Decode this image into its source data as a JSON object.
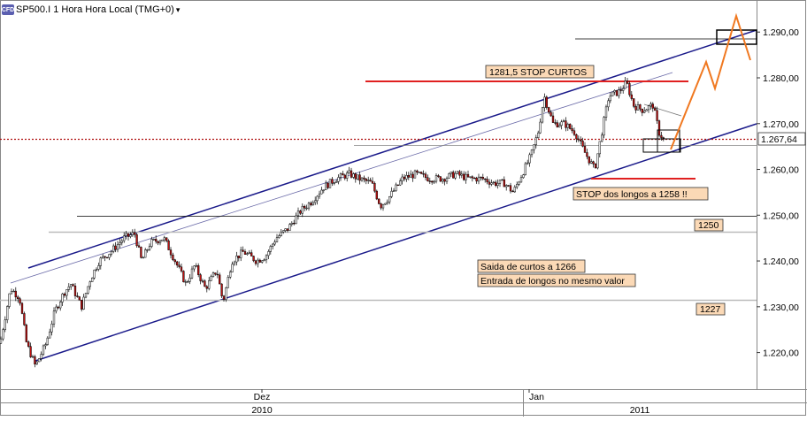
{
  "header": {
    "logo_text": "CFD",
    "title": "SP500.I 1 Hora Hora Local (TMG+0)",
    "menu_glyph": "▾"
  },
  "colors": {
    "channel": "#1a1a8a",
    "stop": "#e02020",
    "forecast": "#f07820",
    "candle_up": "#ffffff",
    "candle_down": "#c01010",
    "price_line": "#b01010",
    "label_bg": "#fbd9b6"
  },
  "chart_data": {
    "type": "candlestick",
    "ylim": [
      1212,
      1297
    ],
    "y_ticks": [
      "1.220,00",
      "1.230,00",
      "1.240,00",
      "1.250,00",
      "1.260,00",
      "1.270,00",
      "1.280,00",
      "1.290,00"
    ],
    "y_tick_values": [
      1220,
      1230,
      1240,
      1250,
      1260,
      1270,
      1280,
      1290
    ],
    "x_labels_top": [
      "Dez",
      "Jan"
    ],
    "x_labels_bottom": [
      "2010",
      "2011"
    ],
    "current_price": 1267.64,
    "current_price_label": "1.267,64",
    "levels": [
      {
        "value": 1250,
        "label": "1250"
      },
      {
        "value": 1227,
        "label": "1227"
      }
    ],
    "annotations": [
      "1281,5 STOP CURTOS",
      "STOP dos longos a 1258 !!",
      "Saida de curtos a 1266",
      "Entrada de longos no mesmo valor"
    ],
    "close_path": [
      [
        0,
        1222
      ],
      [
        12,
        1234
      ],
      [
        22,
        1232
      ],
      [
        30,
        1222
      ],
      [
        40,
        1217
      ],
      [
        52,
        1222
      ],
      [
        62,
        1229
      ],
      [
        72,
        1233
      ],
      [
        80,
        1235
      ],
      [
        92,
        1230
      ],
      [
        102,
        1236
      ],
      [
        112,
        1240
      ],
      [
        125,
        1242
      ],
      [
        140,
        1245
      ],
      [
        152,
        1246
      ],
      [
        160,
        1240
      ],
      [
        170,
        1244
      ],
      [
        185,
        1245
      ],
      [
        198,
        1240
      ],
      [
        210,
        1235
      ],
      [
        220,
        1239
      ],
      [
        232,
        1234
      ],
      [
        245,
        1238
      ],
      [
        252,
        1231
      ],
      [
        262,
        1240
      ],
      [
        275,
        1242
      ],
      [
        290,
        1240
      ],
      [
        300,
        1241
      ],
      [
        312,
        1245
      ],
      [
        325,
        1247
      ],
      [
        340,
        1251
      ],
      [
        352,
        1253
      ],
      [
        365,
        1256
      ],
      [
        380,
        1258
      ],
      [
        395,
        1259
      ],
      [
        405,
        1258
      ],
      [
        420,
        1257
      ],
      [
        430,
        1252
      ],
      [
        440,
        1254
      ],
      [
        455,
        1258
      ],
      [
        470,
        1259
      ],
      [
        485,
        1258
      ],
      [
        500,
        1258
      ],
      [
        515,
        1259
      ],
      [
        530,
        1258
      ],
      [
        545,
        1258
      ],
      [
        558,
        1257
      ],
      [
        570,
        1257
      ],
      [
        580,
        1255
      ],
      [
        590,
        1259
      ],
      [
        600,
        1263
      ],
      [
        608,
        1268
      ],
      [
        615,
        1276
      ],
      [
        625,
        1270
      ],
      [
        638,
        1270
      ],
      [
        650,
        1268
      ],
      [
        660,
        1264
      ],
      [
        672,
        1260
      ],
      [
        680,
        1268
      ],
      [
        688,
        1276
      ],
      [
        700,
        1277
      ],
      [
        708,
        1279
      ],
      [
        716,
        1274
      ],
      [
        726,
        1273
      ],
      [
        738,
        1274
      ],
      [
        745,
        1268
      ],
      [
        752,
        1266
      ]
    ]
  }
}
